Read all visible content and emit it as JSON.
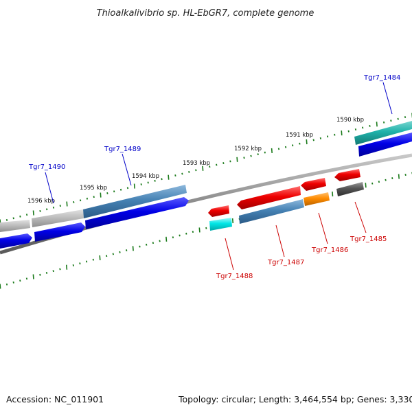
{
  "title": "Thioalkalivibrio sp. HL-EbGR7, complete genome",
  "footer": {
    "accession": "Accession: NC_011901",
    "summary": "Topology: circular; Length: 3,464,554 bp; Genes: 3,330"
  },
  "kbp_ticks": [
    {
      "id": "1596",
      "label": "1596 kbp"
    },
    {
      "id": "1595",
      "label": "1595 kbp"
    },
    {
      "id": "1594",
      "label": "1594 kbp"
    },
    {
      "id": "1593",
      "label": "1593 kbp"
    },
    {
      "id": "1592",
      "label": "1592 kbp"
    },
    {
      "id": "1591",
      "label": "1591 kbp"
    },
    {
      "id": "1590",
      "label": "1590 kbp"
    }
  ],
  "gene_labels": {
    "tgr7_1490": "Tgr7_1490",
    "tgr7_1489": "Tgr7_1489",
    "tgr7_1484": "Tgr7_1484",
    "tgr7_1488": "Tgr7_1488",
    "tgr7_1487": "Tgr7_1487",
    "tgr7_1486": "Tgr7_1486",
    "tgr7_1485": "Tgr7_1485"
  },
  "colors": {
    "forward_label": "#0000c8",
    "reverse_label": "#cc0000",
    "tick_green": "#1a7a1a",
    "backbone": "#808080",
    "cds_blue": "#0000e6",
    "red": "#ee0000",
    "steel_blue": "#4682b4",
    "light_grey": "#bdbdbd",
    "cyan": "#00e5e5",
    "teal": "#20b2aa",
    "orange": "#ff8c00",
    "dark_grey": "#555555"
  }
}
